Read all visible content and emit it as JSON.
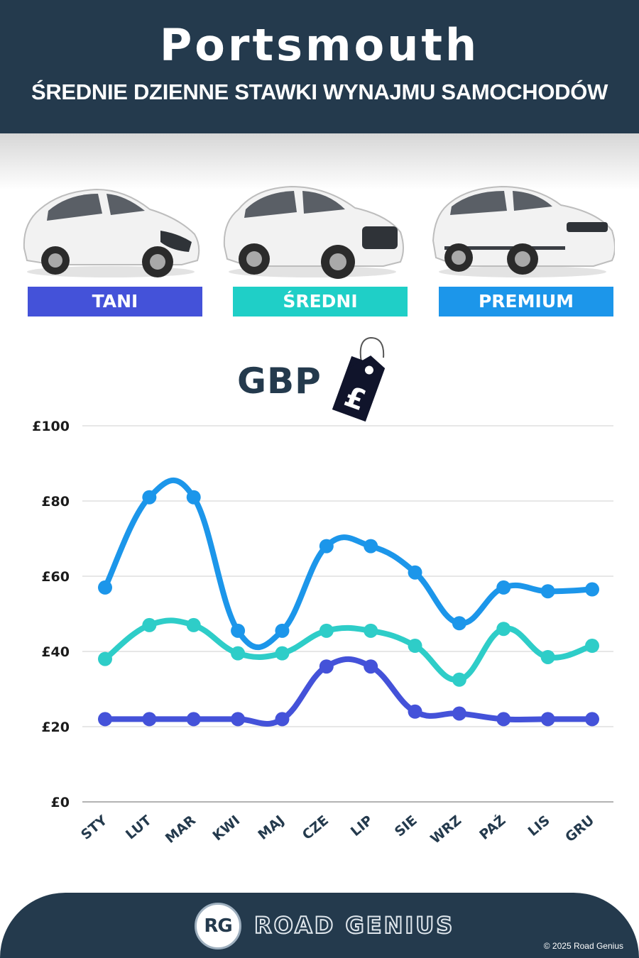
{
  "header": {
    "city": "Portsmouth",
    "subtitle": "ŚREDNIE DZIENNE STAWKI WYNAJMU SAMOCHODÓW"
  },
  "categories": [
    {
      "label": "TANI",
      "color": "#4452d9",
      "icon": "hatchback-car-icon"
    },
    {
      "label": "ŚREDNI",
      "color": "#1fcfc7",
      "icon": "suv-car-icon"
    },
    {
      "label": "PREMIUM",
      "color": "#1c96ea",
      "icon": "luxury-suv-car-icon"
    }
  ],
  "currency": {
    "label": "GBP",
    "symbol": "£",
    "icon": "price-tag-icon"
  },
  "chart_data": {
    "type": "line",
    "categories": [
      "STY",
      "LUT",
      "MAR",
      "KWI",
      "MAJ",
      "CZE",
      "LIP",
      "SIE",
      "WRZ",
      "PAŹ",
      "LIS",
      "GRU"
    ],
    "series": [
      {
        "name": "PREMIUM",
        "color": "#1c96ea",
        "values": [
          57,
          81,
          81,
          45.5,
          45.5,
          68,
          68,
          61,
          47.5,
          57,
          56,
          56.5
        ]
      },
      {
        "name": "ŚREDNI",
        "color": "#2ecdc8",
        "values": [
          38,
          47,
          47,
          39.5,
          39.5,
          45.5,
          45.5,
          41.5,
          32.5,
          46,
          38.5,
          41.5
        ]
      },
      {
        "name": "TANI",
        "color": "#4452d9",
        "values": [
          22,
          22,
          22,
          22,
          22,
          36,
          36,
          24,
          23.5,
          22,
          22,
          22
        ]
      }
    ],
    "yticks": [
      "£0",
      "£20",
      "£40",
      "£60",
      "£80",
      "£100"
    ],
    "ylim": [
      0,
      100
    ],
    "grid": true
  },
  "footer": {
    "logo": "RG",
    "brand": "ROAD GENIUS",
    "copyright": "© 2025 Road Genius"
  }
}
